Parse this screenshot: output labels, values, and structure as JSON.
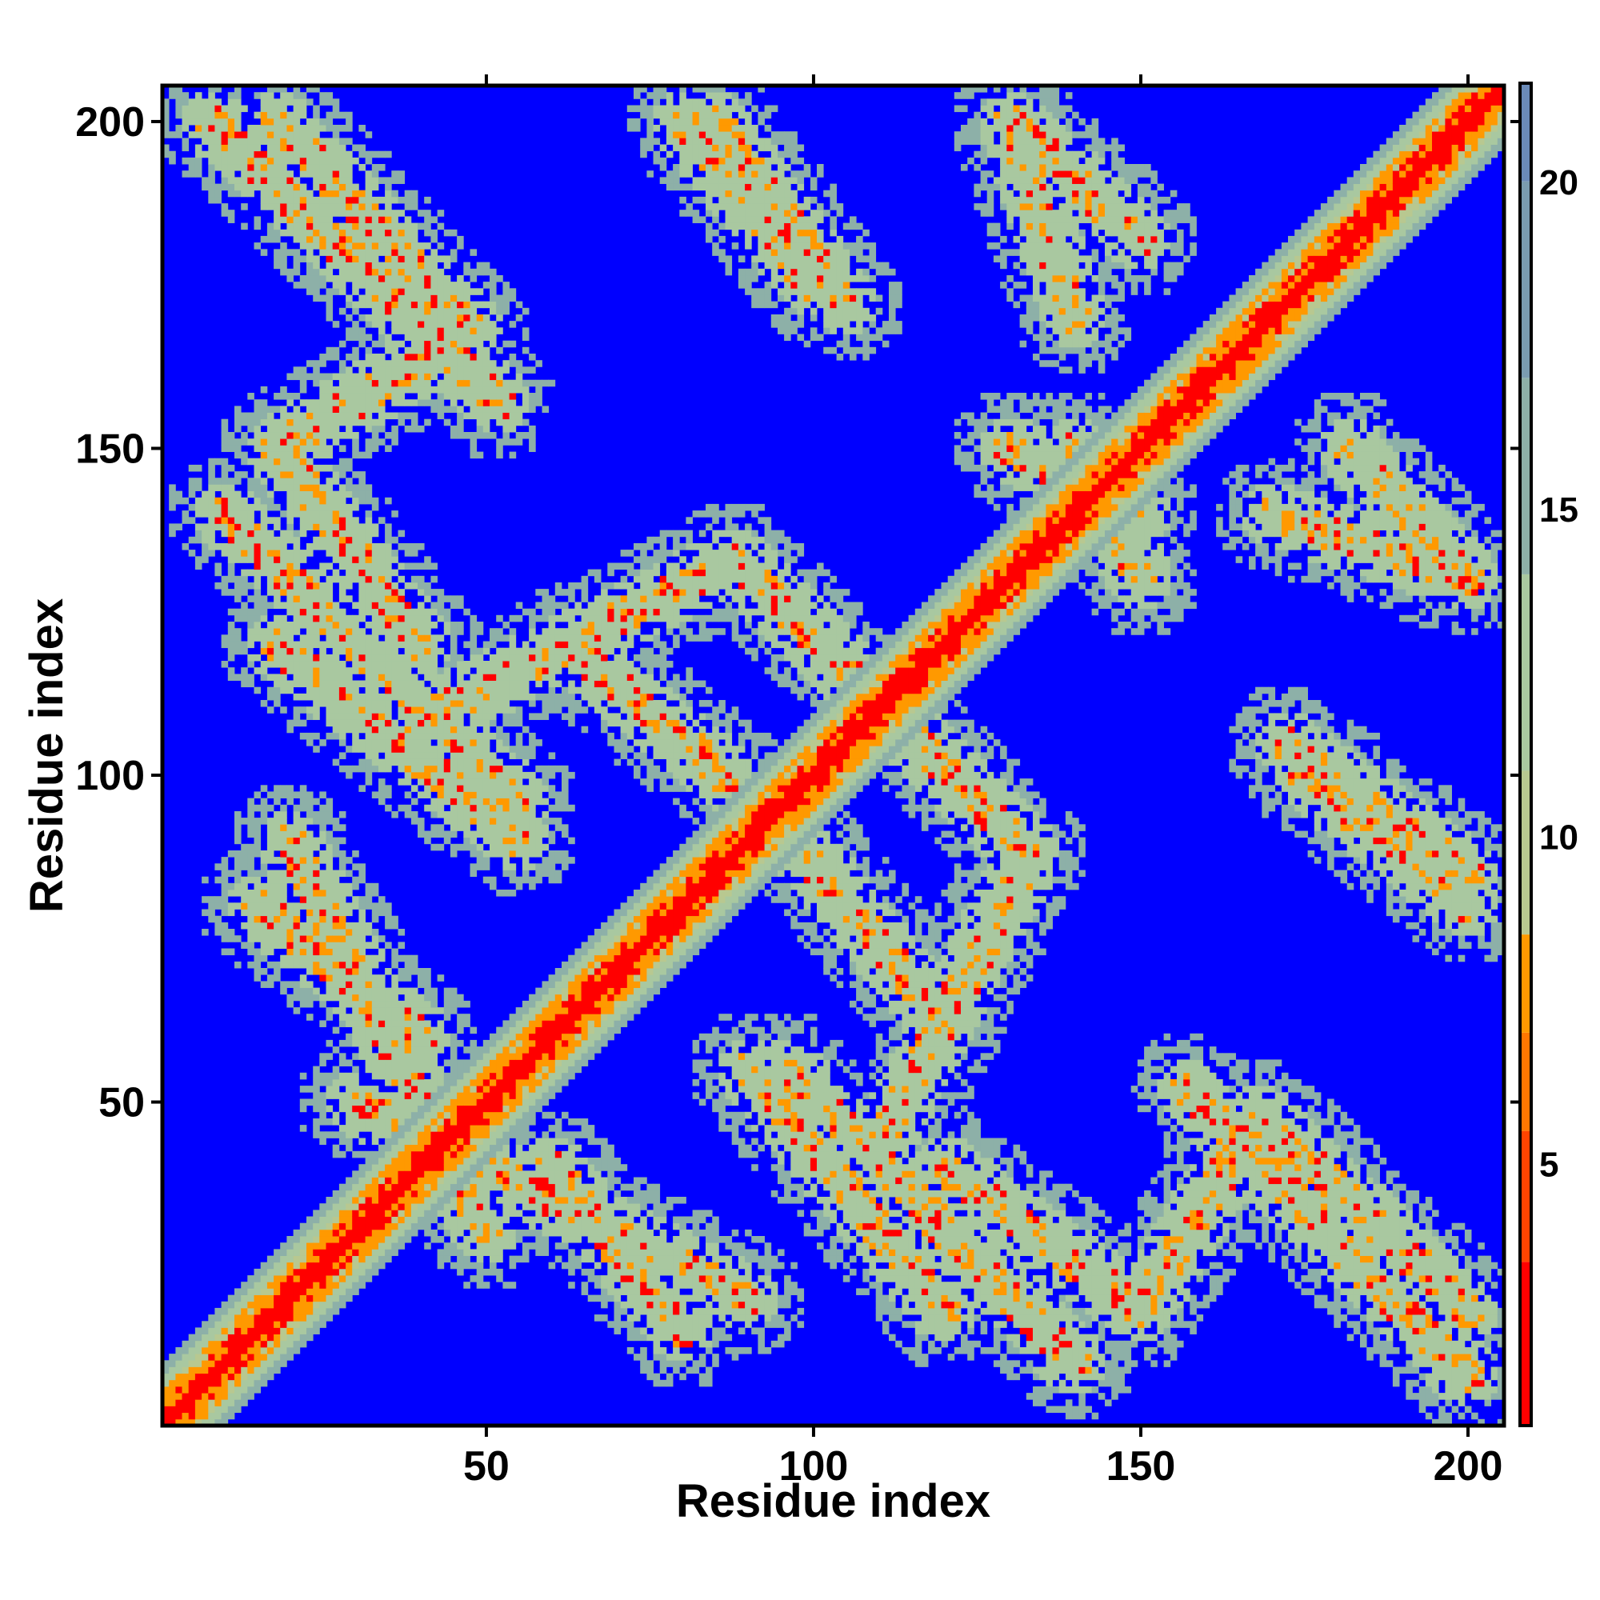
{
  "chart_data": {
    "type": "heatmap",
    "title": "",
    "xlabel": "Residue index",
    "ylabel": "Residue index",
    "xlim": [
      0.5,
      205.5
    ],
    "ylim": [
      0.5,
      205.5
    ],
    "n_residues": 205,
    "xticks": [
      50,
      100,
      150,
      200
    ],
    "yticks": [
      50,
      100,
      150,
      200
    ],
    "colorbar": {
      "range": [
        1,
        21.5
      ],
      "ticks": [
        5,
        10,
        15,
        20
      ],
      "colors": {
        "near": "#ff0000",
        "mid": "#ff9900",
        "light": "#a9c8a0",
        "far": "#6a8ab8",
        "background": "#0000ff"
      },
      "placement": "right"
    },
    "grid": false,
    "cell_value_bands": [
      {
        "label": "<5",
        "color": "#ff0000"
      },
      {
        "label": "5-8",
        "color": "#ff9900"
      },
      {
        "label": "8-13",
        "color": "#a9c8a0"
      },
      {
        "label": "13-18",
        "color": "#8db0a8"
      },
      {
        "label": ">21",
        "color": "#0000ff"
      }
    ],
    "contact_bands": [
      {
        "kind": "diagonal",
        "from": [
          1,
          1
        ],
        "to": [
          205,
          205
        ],
        "width": 6
      },
      {
        "kind": "antidiagonal",
        "from": [
          8,
          200
        ],
        "to": [
          52,
          157
        ]
      },
      {
        "kind": "antidiagonal",
        "from": [
          10,
          140
        ],
        "to": [
          55,
          96
        ]
      },
      {
        "kind": "antidiagonal",
        "from": [
          45,
          111
        ],
        "to": [
          88,
          133
        ]
      },
      {
        "kind": "antidiagonal",
        "from": [
          88,
          133
        ],
        "to": [
          125,
          96
        ]
      },
      {
        "kind": "antidiagonal",
        "from": [
          85,
          200
        ],
        "to": [
          105,
          172
        ]
      },
      {
        "kind": "antidiagonal",
        "from": [
          130,
          200
        ],
        "to": [
          150,
          182
        ]
      },
      {
        "kind": "antidiagonal",
        "from": [
          120,
          62
        ],
        "to": [
          93,
          95
        ]
      },
      {
        "kind": "antidiagonal",
        "from": [
          90,
          55
        ],
        "to": [
          120,
          18
        ]
      },
      {
        "kind": "antidiagonal",
        "from": [
          120,
          40
        ],
        "to": [
          150,
          18
        ]
      },
      {
        "kind": "antidiagonal",
        "from": [
          150,
          18
        ],
        "to": [
          168,
          48
        ]
      },
      {
        "kind": "antidiagonal",
        "from": [
          168,
          48
        ],
        "to": [
          200,
          18
        ]
      },
      {
        "kind": "antidiagonal",
        "from": [
          175,
          100
        ],
        "to": [
          200,
          80
        ]
      },
      {
        "kind": "antidiagonal",
        "from": [
          170,
          140
        ],
        "to": [
          200,
          130
        ]
      },
      {
        "kind": "antidiagonal",
        "from": [
          20,
          90
        ],
        "to": [
          50,
          30
        ]
      },
      {
        "kind": "antidiagonal",
        "from": [
          60,
          40
        ],
        "to": [
          80,
          15
        ]
      },
      {
        "kind": "antidiagonal",
        "from": [
          130,
          150
        ],
        "to": [
          150,
          140
        ]
      }
    ]
  }
}
